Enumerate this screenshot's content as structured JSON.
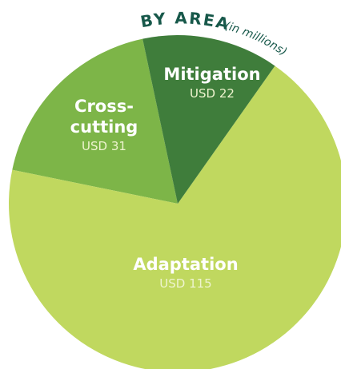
{
  "chart_data": {
    "type": "pie",
    "title": "BY AREA",
    "subtitle": "(in millions)",
    "categories": [
      "Mitigation",
      "Adaptation",
      "Cross-cutting"
    ],
    "values": [
      22,
      115,
      31
    ],
    "value_labels": [
      "USD 22",
      "USD 115",
      "USD 31"
    ],
    "colors": [
      "#3f7d3b",
      "#c0d85f",
      "#7db548"
    ]
  }
}
